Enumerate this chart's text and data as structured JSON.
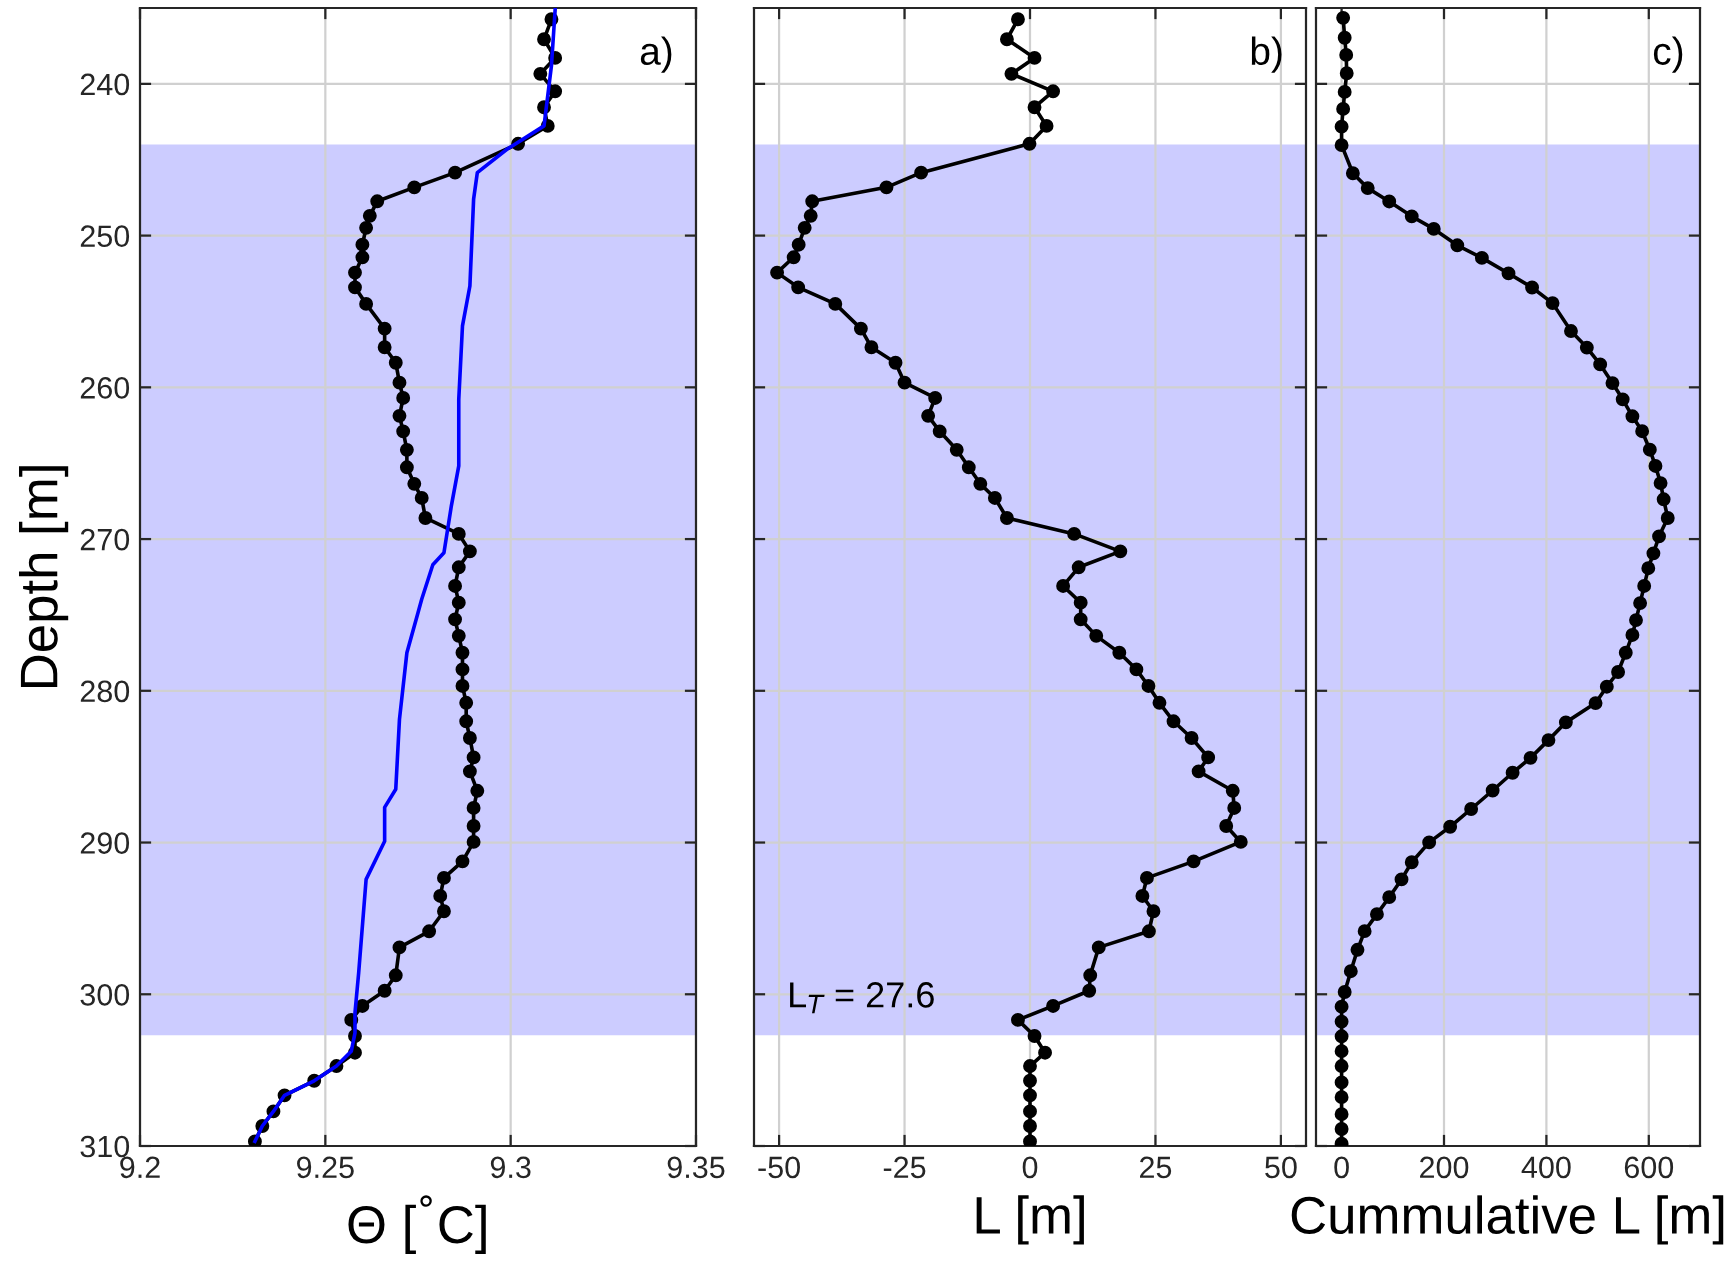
{
  "chart_data": [
    {
      "type": "line",
      "title": "a)",
      "xlabel": "Θ [$^{°}$C]",
      "ylabel": "Depth [m]",
      "xlim": [
        9.2,
        9.35
      ],
      "xticks": [
        9.2,
        9.25,
        9.3,
        9.35
      ],
      "ylim": [
        310,
        235
      ],
      "yticks": [
        240,
        250,
        260,
        270,
        280,
        290,
        300,
        310
      ],
      "grid": true,
      "bands": [
        {
          "axis": "y",
          "from": 244,
          "to": 302.7,
          "color": "#ccccff"
        }
      ],
      "series": [
        {
          "color": "#000000",
          "marker": "circle",
          "x": [
            9.311,
            9.309,
            9.312,
            9.308,
            9.312,
            9.309,
            9.31,
            9.302,
            9.285,
            9.274,
            9.264,
            9.262,
            9.261,
            9.26,
            9.26,
            9.258,
            9.258,
            9.261,
            9.266,
            9.266,
            9.269,
            9.27,
            9.271,
            9.27,
            9.271,
            9.272,
            9.272,
            9.274,
            9.276,
            9.277,
            9.286,
            9.289,
            9.286,
            9.285,
            9.286,
            9.285,
            9.286,
            9.287,
            9.287,
            9.287,
            9.288,
            9.288,
            9.289,
            9.29,
            9.289,
            9.291,
            9.29,
            9.29,
            9.29,
            9.287,
            9.282,
            9.281,
            9.282,
            9.278,
            9.27,
            9.269,
            9.266,
            9.26,
            9.257,
            9.258,
            9.258,
            9.253,
            9.247,
            9.239,
            9.236,
            9.233,
            9.231
          ],
          "values": [
            235.74,
            237.06,
            238.29,
            239.34,
            240.49,
            241.54,
            242.77,
            243.95,
            245.85,
            246.82,
            247.74,
            248.7,
            249.49,
            250.6,
            251.43,
            252.44,
            253.41,
            254.5,
            256.13,
            257.36,
            258.38,
            259.69,
            260.7,
            261.88,
            262.9,
            264.12,
            265.27,
            266.36,
            267.29,
            268.61,
            269.66,
            270.81,
            271.86,
            273.09,
            274.19,
            275.29,
            276.38,
            277.49,
            278.59,
            279.68,
            280.79,
            282.01,
            283.11,
            284.39,
            285.31,
            286.59,
            287.72,
            288.91,
            289.96,
            291.24,
            292.33,
            293.52,
            294.53,
            295.85,
            296.91,
            298.75,
            299.77,
            300.77,
            301.69,
            302.75,
            303.85,
            304.73,
            305.7,
            306.66,
            307.72,
            308.68,
            309.7
          ]
        },
        {
          "color": "#0000ff",
          "marker": "none",
          "x": [
            9.312,
            9.311,
            9.309,
            9.299,
            9.291,
            9.29,
            9.289,
            9.287,
            9.286,
            9.286,
            9.284,
            9.282,
            9.279,
            9.276,
            9.275,
            9.272,
            9.27,
            9.269,
            9.266,
            9.266,
            9.261,
            9.259,
            9.258,
            9.258,
            9.257,
            9.253,
            9.247,
            9.239,
            9.236,
            9.233,
            9.231
          ],
          "values": [
            235.1,
            238.81,
            242.77,
            244.31,
            245.85,
            247.61,
            253.32,
            255.95,
            260.79,
            265.18,
            267.81,
            270.9,
            271.69,
            273.97,
            274.85,
            277.49,
            281.88,
            286.49,
            287.68,
            289.92,
            292.43,
            298.58,
            301.22,
            302.54,
            303.76,
            304.73,
            305.7,
            306.66,
            307.72,
            308.68,
            309.7
          ]
        }
      ]
    },
    {
      "type": "line",
      "title": "b)",
      "xlabel": "L [m]",
      "xlim": [
        -55,
        55
      ],
      "xticks": [
        -50,
        -25,
        0,
        25,
        50
      ],
      "ylim": [
        310,
        235
      ],
      "yticks": [
        240,
        250,
        260,
        270,
        280,
        290,
        300,
        310
      ],
      "grid": true,
      "tick_labels": "x",
      "bands": [
        {
          "axis": "y",
          "from": 244,
          "to": 302.7,
          "color": "#ccccff"
        }
      ],
      "annotations": [
        "L$_{T}$ = 27.6"
      ],
      "series": [
        {
          "color": "#000000",
          "marker": "circle",
          "x": [
            -2.4,
            -4.6,
            0.9,
            -3.7,
            4.6,
            0.9,
            3.3,
            -0.1,
            -21.7,
            -28.6,
            -43.4,
            -43.7,
            -44.9,
            -46.1,
            -47.1,
            -50.4,
            -46.2,
            -38.8,
            -33.7,
            -31.6,
            -26.8,
            -25.0,
            -18.9,
            -20.3,
            -18.0,
            -14.6,
            -12.2,
            -9.9,
            -7.0,
            -4.6,
            8.8,
            18.0,
            9.7,
            6.6,
            10.1,
            10.1,
            13.2,
            17.8,
            21.2,
            23.6,
            25.8,
            28.6,
            32.2,
            35.5,
            33.6,
            40.4,
            40.7,
            39.1,
            42.0,
            32.6,
            23.3,
            22.4,
            24.6,
            23.7,
            13.7,
            12.0,
            11.8,
            4.6,
            -2.4,
            0.9,
            3.0,
            0,
            0,
            0,
            0,
            0,
            0
          ],
          "values": [
            235.74,
            237.06,
            238.29,
            239.34,
            240.49,
            241.54,
            242.77,
            243.95,
            245.85,
            246.82,
            247.74,
            248.7,
            249.49,
            250.6,
            251.43,
            252.44,
            253.41,
            254.5,
            256.13,
            257.36,
            258.38,
            259.69,
            260.7,
            261.88,
            262.9,
            264.12,
            265.27,
            266.36,
            267.29,
            268.61,
            269.66,
            270.81,
            271.86,
            273.09,
            274.19,
            275.29,
            276.38,
            277.49,
            278.59,
            279.68,
            280.79,
            282.01,
            283.11,
            284.39,
            285.31,
            286.59,
            287.72,
            288.91,
            289.96,
            291.24,
            292.33,
            293.52,
            294.53,
            295.85,
            296.91,
            298.75,
            299.77,
            300.77,
            301.69,
            302.75,
            303.85,
            304.73,
            305.7,
            306.66,
            307.72,
            308.68,
            309.7
          ]
        }
      ]
    },
    {
      "type": "line",
      "title": "c)",
      "xlabel": "Cummulative L [m]",
      "xlim": [
        -50,
        700
      ],
      "xticks": [
        0,
        200,
        400,
        600
      ],
      "ylim": [
        310,
        235
      ],
      "yticks": [
        240,
        250,
        260,
        270,
        280,
        290,
        300,
        310
      ],
      "grid": true,
      "tick_labels": "x",
      "bands": [
        {
          "axis": "y",
          "from": 244,
          "to": 302.7,
          "color": "#ccccff"
        }
      ],
      "series": [
        {
          "color": "#000000",
          "marker": "circle",
          "x": [
            3,
            6,
            9,
            10,
            6,
            3,
            0,
            0,
            22,
            51,
            93,
            137,
            180,
            226,
            274,
            326,
            372,
            412,
            448,
            479,
            505,
            529,
            549,
            568,
            587,
            602,
            613,
            623,
            629,
            637,
            620,
            609,
            599,
            591,
            583,
            575,
            568,
            555,
            540,
            518,
            496,
            438,
            404,
            369,
            334,
            295,
            253,
            212,
            171,
            137,
            117,
            93,
            69,
            45,
            31,
            18,
            6,
            0,
            0,
            0,
            0,
            0,
            0,
            0,
            0,
            0,
            0
          ],
          "values": [
            235.65,
            236.96,
            238.09,
            239.3,
            240.53,
            241.65,
            242.82,
            244.04,
            245.89,
            246.87,
            247.75,
            248.73,
            249.56,
            250.64,
            251.47,
            252.49,
            253.42,
            254.45,
            256.29,
            257.38,
            258.49,
            259.72,
            260.79,
            261.91,
            262.89,
            264.11,
            265.18,
            266.31,
            267.38,
            268.61,
            269.82,
            270.94,
            271.92,
            273.09,
            274.22,
            275.34,
            276.32,
            277.49,
            278.76,
            279.73,
            280.81,
            282.08,
            283.25,
            284.42,
            285.4,
            286.57,
            287.79,
            288.96,
            289.99,
            291.3,
            292.43,
            293.6,
            294.72,
            295.84,
            297.07,
            298.48,
            299.85,
            300.82,
            301.8,
            302.77,
            303.75,
            304.73,
            305.81,
            306.78,
            307.9,
            308.88,
            309.85
          ]
        }
      ]
    }
  ]
}
